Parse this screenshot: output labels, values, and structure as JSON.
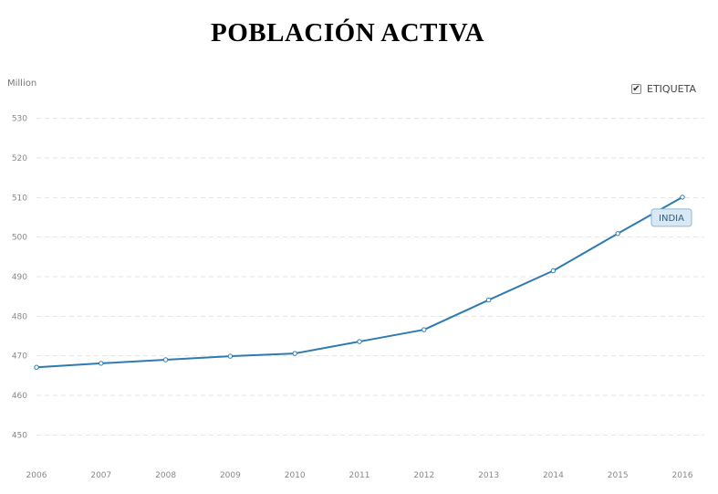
{
  "title": "POBLACIÓN ACTIVA",
  "chart_data": {
    "type": "line",
    "unit": "Million",
    "x": [
      2006,
      2007,
      2008,
      2009,
      2010,
      2011,
      2012,
      2013,
      2014,
      2015,
      2016
    ],
    "series": [
      {
        "name": "INDIA",
        "values": [
          467.1,
          468.1,
          469.0,
          469.9,
          470.6,
          473.6,
          476.6,
          484.1,
          491.5,
          500.9,
          510.1
        ]
      }
    ],
    "ylim": [
      445,
      535
    ],
    "yticks": [
      450,
      460,
      470,
      480,
      490,
      500,
      510,
      520,
      530
    ],
    "grid": true,
    "legend": {
      "label": "ETIQUETA",
      "checked": true,
      "position": "top-right"
    },
    "colors": {
      "line": "#2e7bb0",
      "grid": "#e3e3e3",
      "label_bg": "#d9e8f5",
      "label_border": "#8fb6d6"
    }
  }
}
